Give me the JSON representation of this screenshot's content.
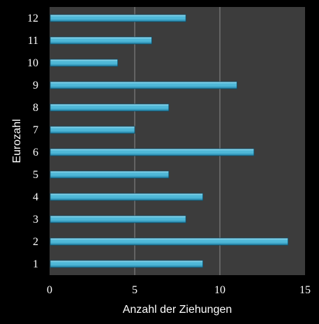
{
  "chart_data": {
    "type": "bar",
    "orientation": "horizontal",
    "categories": [
      "1",
      "2",
      "3",
      "4",
      "5",
      "6",
      "7",
      "8",
      "9",
      "10",
      "11",
      "12"
    ],
    "values": [
      9,
      14,
      8,
      9,
      7,
      12,
      5,
      7,
      11,
      4,
      6,
      8
    ],
    "xlabel": "Anzahl der Ziehungen",
    "ylabel": "Eurozahl",
    "xlim": [
      0,
      15
    ],
    "xticks": [
      "0",
      "5",
      "10",
      "15"
    ],
    "grid": "vertical gridlines at major ticks",
    "legend": "none",
    "colors": {
      "background": "#000000",
      "plot_area": "#3c3c3c",
      "gridline": "#8a8a8a",
      "bar_fill_top": "#a8e4f5",
      "bar_fill_mid": "#4fb8d8",
      "bar_fill_bottom": "#1f7ea3",
      "bar_edge": "#0d4f6b",
      "text": "#ffffff"
    }
  }
}
